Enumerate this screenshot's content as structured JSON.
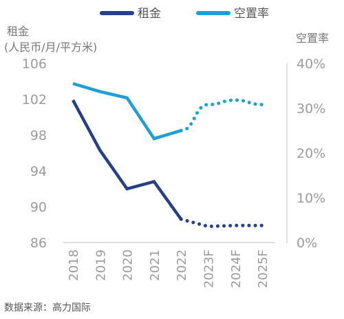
{
  "chart_data": {
    "type": "line",
    "categories": [
      "2018",
      "2019",
      "2020",
      "2021",
      "2022",
      "2023F",
      "2024F",
      "2025F"
    ],
    "legend": {
      "placement": "top"
    },
    "grid": false,
    "y_left": {
      "title_line1": "租金",
      "title_line2": "(人民币/月/平方米)",
      "range": [
        86,
        106
      ],
      "ticks": [
        86,
        90,
        94,
        98,
        102,
        106
      ]
    },
    "y_right": {
      "title": "空置率",
      "range": [
        0,
        40
      ],
      "ticks": [
        "0%",
        "10%",
        "20%",
        "30%",
        "40%"
      ],
      "tick_values": [
        0,
        10,
        20,
        30,
        40
      ]
    },
    "series": [
      {
        "name": "租金",
        "axis": "left",
        "color": "#263f8a",
        "values": [
          101.9,
          96.3,
          92.0,
          92.8,
          88.6,
          87.8,
          87.9,
          87.9
        ],
        "forecast_from_index": 4
      },
      {
        "name": "空置率",
        "axis": "right",
        "color": "#1fa0d4",
        "values": [
          35.5,
          33.7,
          32.3,
          23.2,
          25.0,
          30.8,
          31.8,
          30.8
        ],
        "forecast_from_index": 4
      }
    ],
    "source": "数据来源：高力国际"
  }
}
